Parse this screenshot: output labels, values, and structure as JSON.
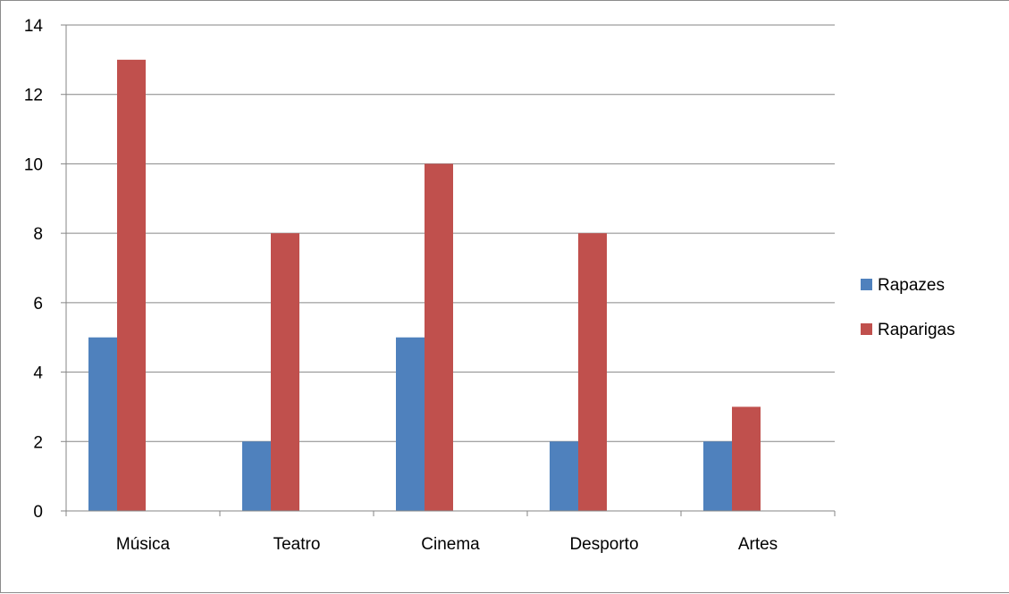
{
  "chart_data": {
    "type": "bar",
    "categories": [
      "Música",
      "Teatro",
      "Cinema",
      "Desporto",
      "Artes"
    ],
    "series": [
      {
        "name": "Rapazes",
        "color": "#4f81bd",
        "values": [
          5,
          2,
          5,
          2,
          2
        ]
      },
      {
        "name": "Raparigas",
        "color": "#c0504d",
        "values": [
          13,
          8,
          10,
          8,
          3
        ]
      }
    ],
    "ylim": [
      0,
      14
    ],
    "yticks": [
      0,
      2,
      4,
      6,
      8,
      10,
      12,
      14
    ],
    "grid": true,
    "legend": "right"
  }
}
